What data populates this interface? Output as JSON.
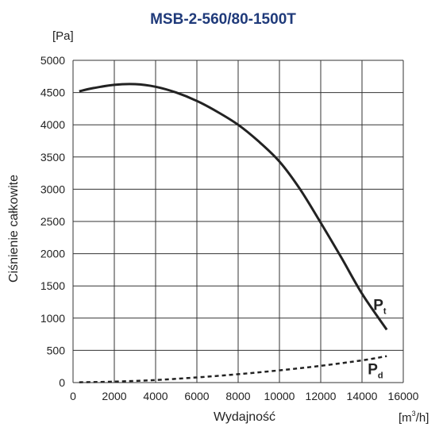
{
  "chart_data": {
    "type": "line",
    "title": "MSB-2-560/80-1500T",
    "ylabel": "Ciśnienie całkowite",
    "yunit": "[Pa]",
    "xlabel": "Wydajność",
    "xunit_base": "[m",
    "xunit_sup": "3",
    "xunit_tail": "/h]",
    "xlim": [
      0,
      16000
    ],
    "ylim": [
      0,
      5000
    ],
    "xticks": [
      0,
      2000,
      4000,
      6000,
      8000,
      10000,
      12000,
      14000,
      16000
    ],
    "yticks": [
      0,
      500,
      1000,
      1500,
      2000,
      2500,
      3000,
      3500,
      4000,
      4500,
      5000
    ],
    "grid": true,
    "colors": {
      "title": "#1f3a7a",
      "line": "#222222",
      "grid": "#333333",
      "text": "#222222"
    },
    "series": [
      {
        "name": "Pt",
        "label_main": "P",
        "label_sub": "t",
        "style": "solid",
        "x": [
          300,
          1000,
          2000,
          3000,
          4000,
          5000,
          6000,
          7000,
          8000,
          9000,
          10000,
          11000,
          12000,
          13000,
          14000,
          15200
        ],
        "y": [
          4520,
          4570,
          4620,
          4630,
          4590,
          4500,
          4370,
          4200,
          4000,
          3740,
          3430,
          3000,
          2480,
          1940,
          1380,
          820
        ]
      },
      {
        "name": "Pd",
        "label_main": "P",
        "label_sub": "d",
        "style": "dashed",
        "x": [
          300,
          2000,
          4000,
          6000,
          8000,
          10000,
          12000,
          14000,
          15200
        ],
        "y": [
          5,
          15,
          40,
          80,
          130,
          190,
          260,
          345,
          410
        ]
      }
    ]
  }
}
